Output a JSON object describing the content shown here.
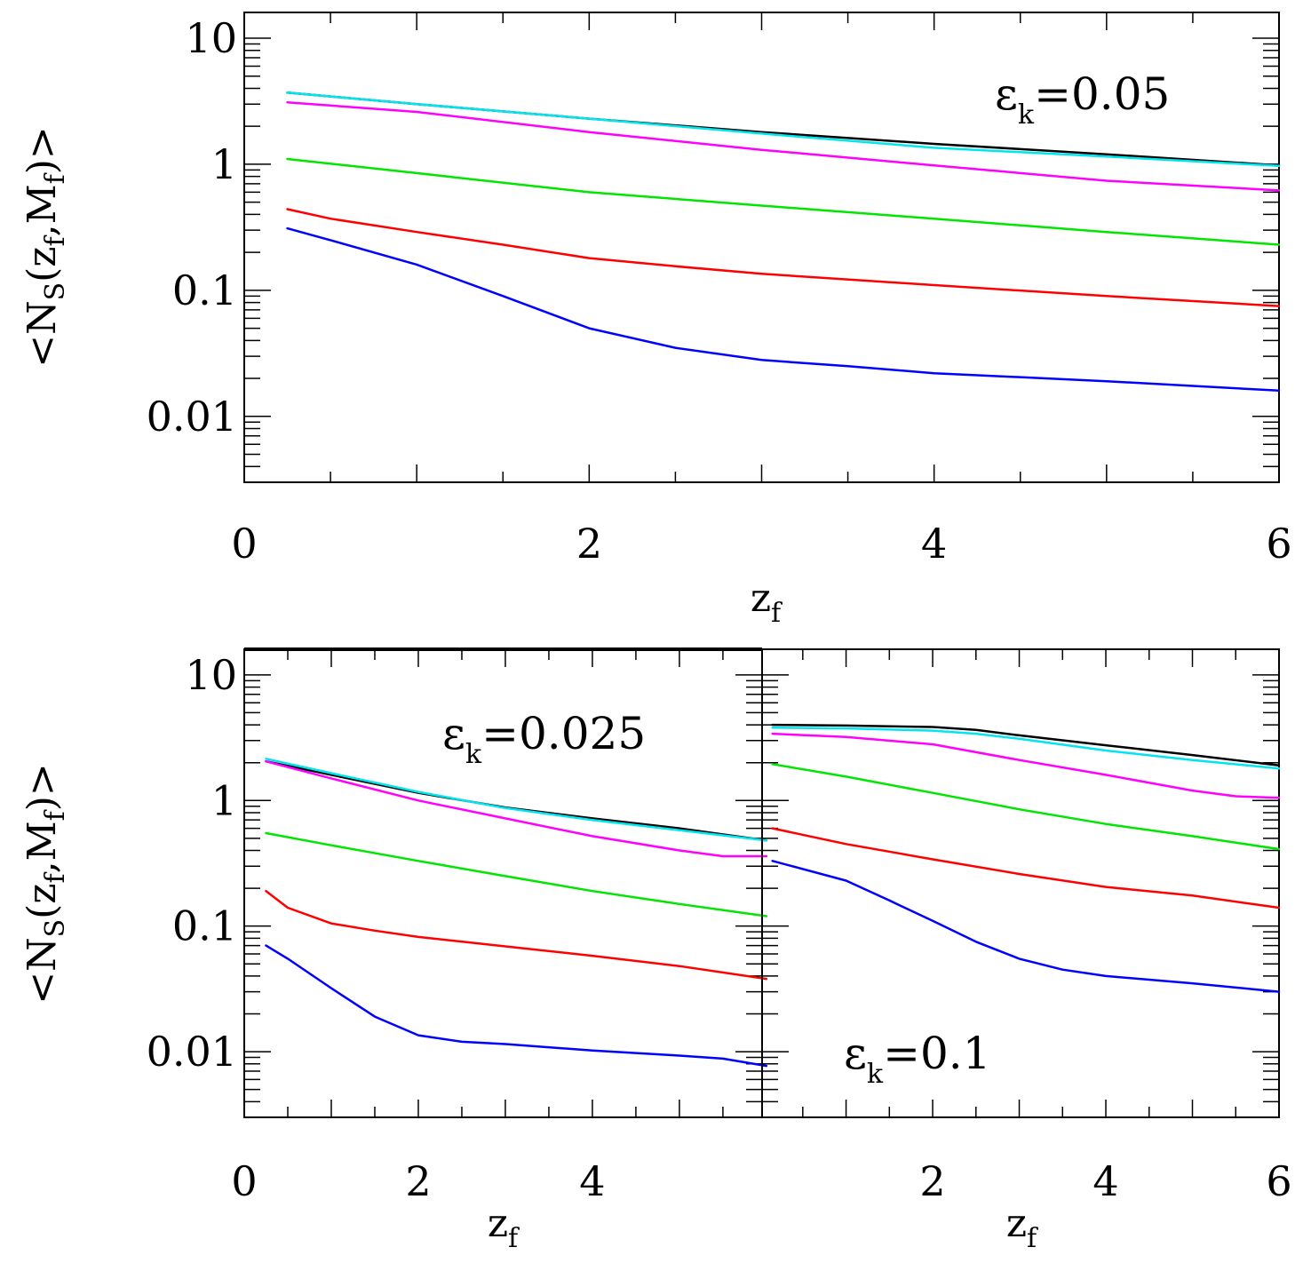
{
  "chart_data": [
    {
      "type": "line",
      "panel": "top",
      "annotation": {
        "symbol": "ε",
        "sub": "k",
        "text": "=0.05"
      },
      "xlabel": {
        "main": "z",
        "sub": "f"
      },
      "ylabel": {
        "pre": "<N",
        "sub1": "S",
        "mid": "(z",
        "sub2": "f",
        "mid2": ",M",
        "sub3": "f",
        "post": ")>"
      },
      "xlim": [
        0,
        6
      ],
      "ylim": [
        0.003,
        16
      ],
      "yscale": "log",
      "xticks": [
        0,
        2,
        4,
        6
      ],
      "xticklabels": [
        "0",
        "2",
        "4",
        "6"
      ],
      "yticks": [
        0.01,
        0.1,
        1,
        10
      ],
      "yticklabels": [
        "0.01",
        "0.1",
        "1",
        "10"
      ],
      "grid": false,
      "legend": "none",
      "series": [
        {
          "color": "#000000",
          "x": [
            0.25,
            1,
            2,
            3,
            4,
            5,
            6
          ],
          "y": [
            3.7,
            3.0,
            2.3,
            1.8,
            1.45,
            1.2,
            0.98
          ]
        },
        {
          "color": "#00e5ee",
          "x": [
            0.25,
            1,
            2,
            3,
            4,
            5,
            6
          ],
          "y": [
            3.7,
            3.0,
            2.3,
            1.75,
            1.35,
            1.15,
            0.97
          ]
        },
        {
          "color": "#ff00ff",
          "x": [
            0.25,
            1,
            2,
            3,
            4,
            5,
            6
          ],
          "y": [
            3.1,
            2.6,
            1.8,
            1.3,
            0.98,
            0.74,
            0.62
          ]
        },
        {
          "color": "#00e600",
          "x": [
            0.25,
            1,
            2,
            3,
            4,
            5,
            6
          ],
          "y": [
            1.1,
            0.85,
            0.6,
            0.47,
            0.37,
            0.29,
            0.23
          ]
        },
        {
          "color": "#ff0000",
          "x": [
            0.25,
            0.5,
            1,
            1.5,
            2,
            2.5,
            3,
            4,
            5,
            6
          ],
          "y": [
            0.44,
            0.37,
            0.29,
            0.23,
            0.18,
            0.155,
            0.135,
            0.11,
            0.09,
            0.075
          ]
        },
        {
          "color": "#0000ff",
          "x": [
            0.25,
            0.5,
            1,
            1.5,
            2,
            2.5,
            3,
            3.5,
            4,
            5,
            6
          ],
          "y": [
            0.31,
            0.25,
            0.16,
            0.09,
            0.05,
            0.035,
            0.028,
            0.025,
            0.022,
            0.019,
            0.016
          ]
        }
      ]
    },
    {
      "type": "line",
      "panel": "bottom-left",
      "annotation": {
        "symbol": "ε",
        "sub": "k",
        "text": "=0.025"
      },
      "xlabel": {
        "main": "z",
        "sub": "f"
      },
      "ylabel": {
        "pre": "<N",
        "sub1": "S",
        "mid": "(z",
        "sub2": "f",
        "mid2": ",M",
        "sub3": "f",
        "post": ")>"
      },
      "xlim": [
        0,
        6
      ],
      "ylim": [
        0.003,
        16
      ],
      "yscale": "log",
      "xticks": [
        0,
        2,
        4
      ],
      "xticklabels": [
        "0",
        "2",
        "4"
      ],
      "yticks": [
        0.01,
        0.1,
        1,
        10
      ],
      "yticklabels": [
        "0.01",
        "0.1",
        "1",
        "10"
      ],
      "grid": false,
      "legend": "none",
      "series": [
        {
          "color": "#000000",
          "x": [
            0.25,
            1,
            2,
            3,
            4,
            5,
            6
          ],
          "y": [
            2.05,
            1.6,
            1.15,
            0.88,
            0.72,
            0.6,
            0.48
          ]
        },
        {
          "color": "#00e5ee",
          "x": [
            0.25,
            1,
            2,
            3,
            4,
            5,
            6
          ],
          "y": [
            2.15,
            1.65,
            1.17,
            0.87,
            0.7,
            0.58,
            0.48
          ]
        },
        {
          "color": "#ff00ff",
          "x": [
            0.25,
            1,
            2,
            3,
            4,
            5,
            5.5,
            6
          ],
          "y": [
            2.05,
            1.5,
            1.0,
            0.72,
            0.52,
            0.4,
            0.36,
            0.36
          ]
        },
        {
          "color": "#00e600",
          "x": [
            0.25,
            1,
            2,
            3,
            4,
            5,
            6
          ],
          "y": [
            0.55,
            0.44,
            0.33,
            0.25,
            0.19,
            0.15,
            0.12
          ]
        },
        {
          "color": "#ff0000",
          "x": [
            0.25,
            0.5,
            1,
            1.5,
            2,
            3,
            4,
            5,
            6
          ],
          "y": [
            0.19,
            0.14,
            0.105,
            0.092,
            0.082,
            0.069,
            0.058,
            0.048,
            0.038
          ]
        },
        {
          "color": "#0000ff",
          "x": [
            0.25,
            0.5,
            1,
            1.5,
            2,
            2.5,
            3,
            4,
            5,
            5.5,
            6
          ],
          "y": [
            0.07,
            0.055,
            0.032,
            0.019,
            0.0135,
            0.012,
            0.0115,
            0.0102,
            0.0093,
            0.0088,
            0.0077
          ]
        }
      ]
    },
    {
      "type": "line",
      "panel": "bottom-right",
      "annotation": {
        "symbol": "ε",
        "sub": "k",
        "text": "=0.1"
      },
      "xlabel": {
        "main": "z",
        "sub": "f"
      },
      "xlim": [
        0,
        6
      ],
      "ylim": [
        0.003,
        16
      ],
      "yscale": "log",
      "xticks": [
        2,
        4,
        6
      ],
      "xticklabels": [
        "2",
        "4",
        "6"
      ],
      "grid": false,
      "legend": "none",
      "series": [
        {
          "color": "#000000",
          "x": [
            0.15,
            1,
            2,
            2.5,
            3,
            4,
            5,
            6
          ],
          "y": [
            4.0,
            3.95,
            3.85,
            3.65,
            3.3,
            2.75,
            2.3,
            1.9
          ]
        },
        {
          "color": "#00e5ee",
          "x": [
            0.15,
            1,
            2,
            2.5,
            3,
            4,
            5,
            6
          ],
          "y": [
            3.8,
            3.75,
            3.6,
            3.4,
            3.1,
            2.5,
            2.1,
            1.8
          ]
        },
        {
          "color": "#ff00ff",
          "x": [
            0.15,
            1,
            2,
            3,
            4,
            5,
            5.5,
            6
          ],
          "y": [
            3.4,
            3.2,
            2.8,
            2.1,
            1.6,
            1.2,
            1.08,
            1.05
          ]
        },
        {
          "color": "#00e600",
          "x": [
            0.15,
            1,
            2,
            3,
            4,
            5,
            6
          ],
          "y": [
            1.95,
            1.55,
            1.15,
            0.85,
            0.65,
            0.52,
            0.41
          ]
        },
        {
          "color": "#ff0000",
          "x": [
            0.15,
            1,
            2,
            3,
            4,
            5,
            6
          ],
          "y": [
            0.6,
            0.45,
            0.34,
            0.26,
            0.205,
            0.175,
            0.14
          ]
        },
        {
          "color": "#0000ff",
          "x": [
            0.15,
            1,
            1.5,
            2,
            2.5,
            3,
            3.5,
            4,
            5,
            6
          ],
          "y": [
            0.33,
            0.23,
            0.16,
            0.11,
            0.075,
            0.055,
            0.045,
            0.04,
            0.035,
            0.03
          ]
        }
      ]
    }
  ]
}
